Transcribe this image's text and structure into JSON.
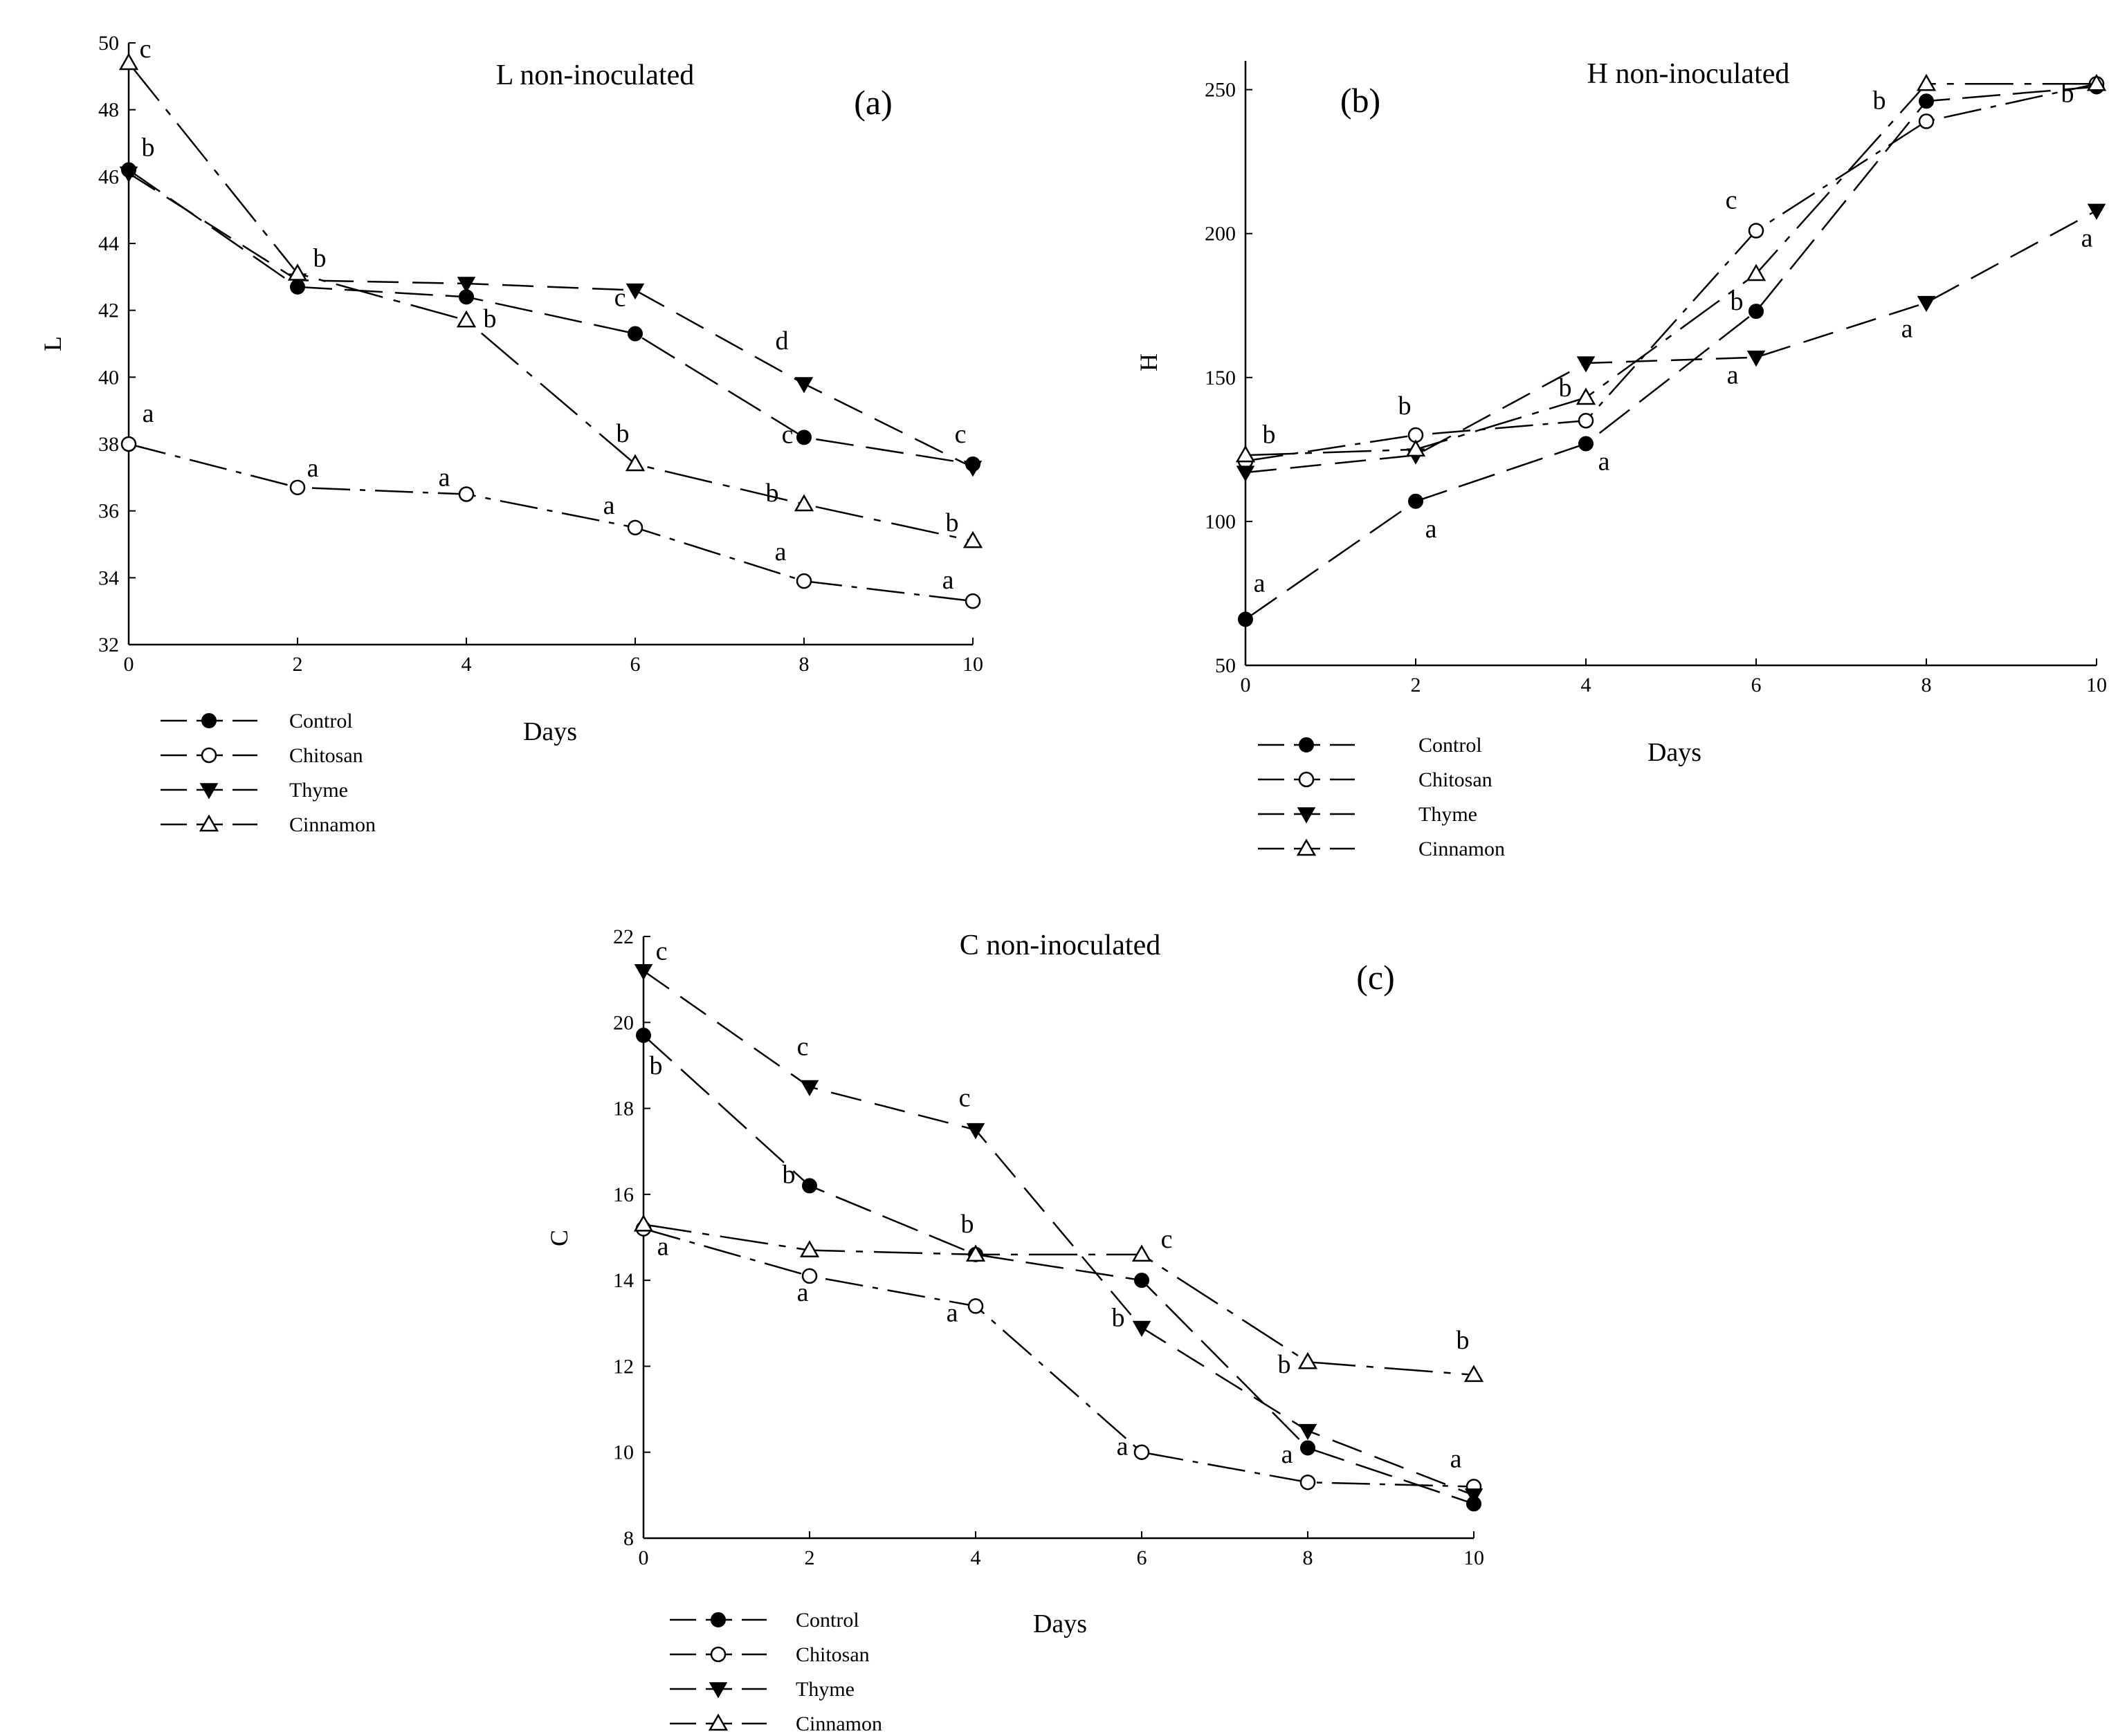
{
  "x_axis_label": "Days",
  "chart_data": [
    {
      "id": "a",
      "type": "line",
      "title": "L non-inoculated",
      "panel_label": "(a)",
      "xlabel": "Days",
      "ylabel": "L",
      "x": [
        0,
        2,
        4,
        6,
        8,
        10
      ],
      "xlim": [
        0,
        10
      ],
      "ylim": [
        32,
        50
      ],
      "xticks": [
        0,
        2,
        4,
        6,
        8,
        10
      ],
      "yticks": [
        32,
        34,
        36,
        38,
        40,
        42,
        44,
        46,
        48,
        50
      ],
      "legend_position": "below-left",
      "series": [
        {
          "name": "Control",
          "marker": "filled-circle",
          "values": [
            46.2,
            42.7,
            42.4,
            41.3,
            38.2,
            37.4
          ],
          "letters": [
            "b",
            "",
            "",
            "c",
            "c",
            ""
          ]
        },
        {
          "name": "Chitosan",
          "marker": "open-circle",
          "values": [
            38.0,
            36.7,
            36.5,
            35.5,
            33.9,
            33.3
          ],
          "letters": [
            "a",
            "a",
            "a",
            "a",
            "a",
            "a"
          ]
        },
        {
          "name": "Thyme",
          "marker": "filled-triangle-down",
          "values": [
            46.1,
            42.9,
            42.8,
            42.6,
            39.8,
            37.3
          ],
          "letters": [
            "",
            "",
            "",
            "",
            "d",
            "c"
          ]
        },
        {
          "name": "Cinnamon",
          "marker": "open-triangle-up",
          "values": [
            49.4,
            43.1,
            41.7,
            37.4,
            36.2,
            35.1
          ],
          "letters": [
            "c",
            "b",
            "b",
            "b",
            "b",
            "b"
          ]
        }
      ]
    },
    {
      "id": "b",
      "type": "line",
      "title": "H non-inoculated",
      "panel_label": "(b)",
      "xlabel": "Days",
      "ylabel": "H",
      "x": [
        0,
        2,
        4,
        6,
        8,
        10
      ],
      "xlim": [
        0,
        10
      ],
      "ylim": [
        50,
        260
      ],
      "xticks": [
        0,
        2,
        4,
        6,
        8,
        10
      ],
      "yticks": [
        50,
        100,
        150,
        200,
        250
      ],
      "legend_position": "below-left",
      "series": [
        {
          "name": "Control",
          "marker": "filled-circle",
          "values": [
            66,
            107,
            127,
            173,
            246,
            251
          ],
          "letters": [
            "a",
            "a",
            "a",
            "",
            "",
            ""
          ]
        },
        {
          "name": "Chitosan",
          "marker": "open-circle",
          "values": [
            121,
            130,
            135,
            201,
            239,
            252
          ],
          "letters": [
            "b",
            "b",
            "",
            "c",
            "",
            "b"
          ]
        },
        {
          "name": "Thyme",
          "marker": "filled-triangle-down",
          "values": [
            117,
            123,
            155,
            157,
            176,
            208
          ],
          "letters": [
            "",
            "",
            "",
            "a",
            "a",
            "a"
          ]
        },
        {
          "name": "Cinnamon",
          "marker": "open-triangle-up",
          "values": [
            123,
            125,
            143,
            186,
            252,
            252
          ],
          "letters": [
            "",
            "",
            "b",
            "b",
            "b",
            ""
          ]
        }
      ]
    },
    {
      "id": "c",
      "type": "line",
      "title": "C non-inoculated",
      "panel_label": "(c)",
      "xlabel": "Days",
      "ylabel": "C",
      "x": [
        0,
        2,
        4,
        6,
        8,
        10
      ],
      "xlim": [
        0,
        10
      ],
      "ylim": [
        8,
        22
      ],
      "xticks": [
        0,
        2,
        4,
        6,
        8,
        10
      ],
      "yticks": [
        8,
        10,
        12,
        14,
        16,
        18,
        20,
        22
      ],
      "legend_position": "below-left",
      "series": [
        {
          "name": "Control",
          "marker": "filled-circle",
          "values": [
            19.7,
            16.2,
            14.6,
            14.0,
            10.1,
            8.8
          ],
          "letters": [
            "b",
            "b",
            "b",
            "",
            "",
            ""
          ]
        },
        {
          "name": "Chitosan",
          "marker": "open-circle",
          "values": [
            15.2,
            14.1,
            13.4,
            10.0,
            9.3,
            9.2
          ],
          "letters": [
            "a",
            "a",
            "a",
            "a",
            "a",
            "a"
          ]
        },
        {
          "name": "Thyme",
          "marker": "filled-triangle-down",
          "values": [
            21.2,
            18.5,
            17.5,
            12.9,
            10.5,
            9.0
          ],
          "letters": [
            "c",
            "c",
            "c",
            "b",
            "",
            ""
          ]
        },
        {
          "name": "Cinnamon",
          "marker": "open-triangle-up",
          "values": [
            15.3,
            14.7,
            14.6,
            14.6,
            12.1,
            11.8
          ],
          "letters": [
            "",
            "",
            "",
            "c",
            "b",
            "b"
          ]
        }
      ]
    }
  ]
}
